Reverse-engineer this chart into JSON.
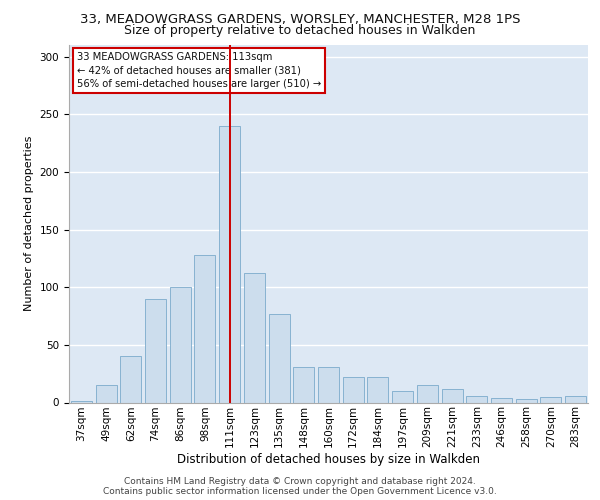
{
  "title1": "33, MEADOWGRASS GARDENS, WORSLEY, MANCHESTER, M28 1PS",
  "title2": "Size of property relative to detached houses in Walkden",
  "xlabel": "Distribution of detached houses by size in Walkden",
  "ylabel": "Number of detached properties",
  "bar_labels": [
    "37sqm",
    "49sqm",
    "62sqm",
    "74sqm",
    "86sqm",
    "98sqm",
    "111sqm",
    "123sqm",
    "135sqm",
    "148sqm",
    "160sqm",
    "172sqm",
    "184sqm",
    "197sqm",
    "209sqm",
    "221sqm",
    "233sqm",
    "246sqm",
    "258sqm",
    "270sqm",
    "283sqm"
  ],
  "bar_values": [
    1,
    15,
    40,
    90,
    100,
    128,
    240,
    112,
    77,
    31,
    31,
    22,
    22,
    10,
    15,
    12,
    6,
    4,
    3,
    5,
    6
  ],
  "vline_index": 6,
  "bar_color": "#ccdded",
  "bar_edge_color": "#7baacb",
  "vline_color": "#cc0000",
  "annotation_box_text": "33 MEADOWGRASS GARDENS: 113sqm\n← 42% of detached houses are smaller (381)\n56% of semi-detached houses are larger (510) →",
  "annotation_box_color": "#cc0000",
  "annotation_fill_color": "#ffffff",
  "ylim": [
    0,
    310
  ],
  "yticks": [
    0,
    50,
    100,
    150,
    200,
    250,
    300
  ],
  "footer_text": "Contains HM Land Registry data © Crown copyright and database right 2024.\nContains public sector information licensed under the Open Government Licence v3.0.",
  "bg_color": "#dde8f4",
  "grid_color": "#ffffff",
  "title1_fontsize": 9.5,
  "title2_fontsize": 9,
  "xlabel_fontsize": 8.5,
  "ylabel_fontsize": 8,
  "tick_fontsize": 7.5,
  "footer_fontsize": 6.5
}
